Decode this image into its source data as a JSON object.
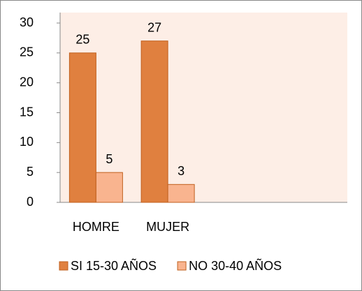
{
  "chart_data": {
    "type": "bar",
    "categories": [
      "HOMRE",
      "MUJER",
      null,
      null
    ],
    "series": [
      {
        "name": "SI 15-30 AÑOS",
        "color": "#e0803f",
        "values": [
          25,
          27,
          null,
          null
        ]
      },
      {
        "name": "NO 30-40 AÑOS",
        "color": "#f9b48f",
        "values": [
          5,
          3,
          null,
          null
        ]
      }
    ],
    "ylim": [
      0,
      30
    ],
    "yticks": [
      0,
      5,
      10,
      15,
      20,
      25,
      30
    ],
    "grid": false,
    "legend": "bottom"
  }
}
